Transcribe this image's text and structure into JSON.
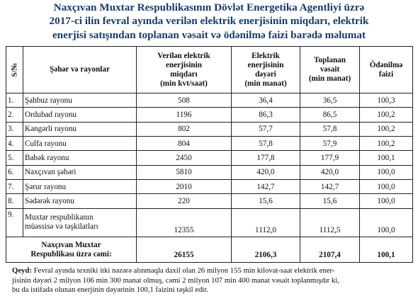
{
  "title_lines": [
    "Naxçıvan Muxtar Respublikasının Dövlət Energetika Agentliyi üzrə",
    "2017-ci ilin fevral ayında verilən elektrik enerjisinin miqdarı, elektrik",
    "enerjisi satışından toplanan vəsait və ödənilmə faizi barədə məlumat"
  ],
  "table": {
    "headers": {
      "num": "S/№",
      "name": "Şəhər və rayonlar",
      "supplied": [
        "Verilən elektrik",
        "enerjisinin",
        "miqdarı",
        "(min kvt/saat)"
      ],
      "value": [
        "Elektrik",
        "enerjisinin",
        "dəyəri",
        "(min manat)"
      ],
      "collected": [
        "Toplanan",
        "vəsait",
        "(min manat)"
      ],
      "payment": [
        "Ödənilmə",
        "faizi"
      ]
    },
    "rows": [
      {
        "num": "1.",
        "name": [
          "Şahbuz rayonu"
        ],
        "supplied": "508",
        "value": "36,4",
        "collected": "36,5",
        "payment": "100,3"
      },
      {
        "num": "2.",
        "name": [
          "Ordubad rayonu"
        ],
        "supplied": "1196",
        "value": "86,3",
        "collected": "86,5",
        "payment": "100,2"
      },
      {
        "num": "3.",
        "name": [
          "Kəngərli rayonu"
        ],
        "supplied": "802",
        "value": "57,7",
        "collected": "57,8",
        "payment": "100,2"
      },
      {
        "num": "4.",
        "name": [
          "Culfa rayonu"
        ],
        "supplied": "804",
        "value": "57,8",
        "collected": "57,9",
        "payment": "100,2"
      },
      {
        "num": "5.",
        "name": [
          "Babək rayonu"
        ],
        "supplied": "2450",
        "value": "177,8",
        "collected": "177,9",
        "payment": "100,1"
      },
      {
        "num": "6.",
        "name": [
          "Naxçıvan şəhəri"
        ],
        "supplied": "5810",
        "value": "420,0",
        "collected": "420,0",
        "payment": "100,0"
      },
      {
        "num": "7.",
        "name": [
          "Şərur rayonu"
        ],
        "supplied": "2010",
        "value": "142,7",
        "collected": "142,7",
        "payment": "100,0"
      },
      {
        "num": "8.",
        "name": [
          "Sədərək rayonu"
        ],
        "supplied": "220",
        "value": "15,6",
        "collected": "15,6",
        "payment": "100,0"
      },
      {
        "num": "9.",
        "name": [
          "Muxtar respublikanın",
          "müəssisə və təşkilatları"
        ],
        "supplied": "12355",
        "value": "1112,0",
        "collected": "1112,5",
        "payment": "100,0"
      }
    ],
    "total": {
      "label": [
        "Naxçıvan Muxtar",
        "Respublikası üzrə cəmi:"
      ],
      "supplied": "26155",
      "value": "2106,3",
      "collected": "2107,4",
      "payment": "100,1"
    }
  },
  "note": {
    "label": "Qeyd:",
    "lines": [
      " Fevral ayında texniki itki nəzərə alınmaqla daxil olan 26 milyon 155 min kilovat-saat elektrik ener-",
      "jisinin dəyəri 2 milyon 106 min 300 manat olmuş, cəmi 2 milyon 107 min 400 manat vəsait toplanmışdır ki,",
      "bu da istifadə olunan enerjinin dəyərinin 100,1 faizini təşkil edir."
    ]
  }
}
